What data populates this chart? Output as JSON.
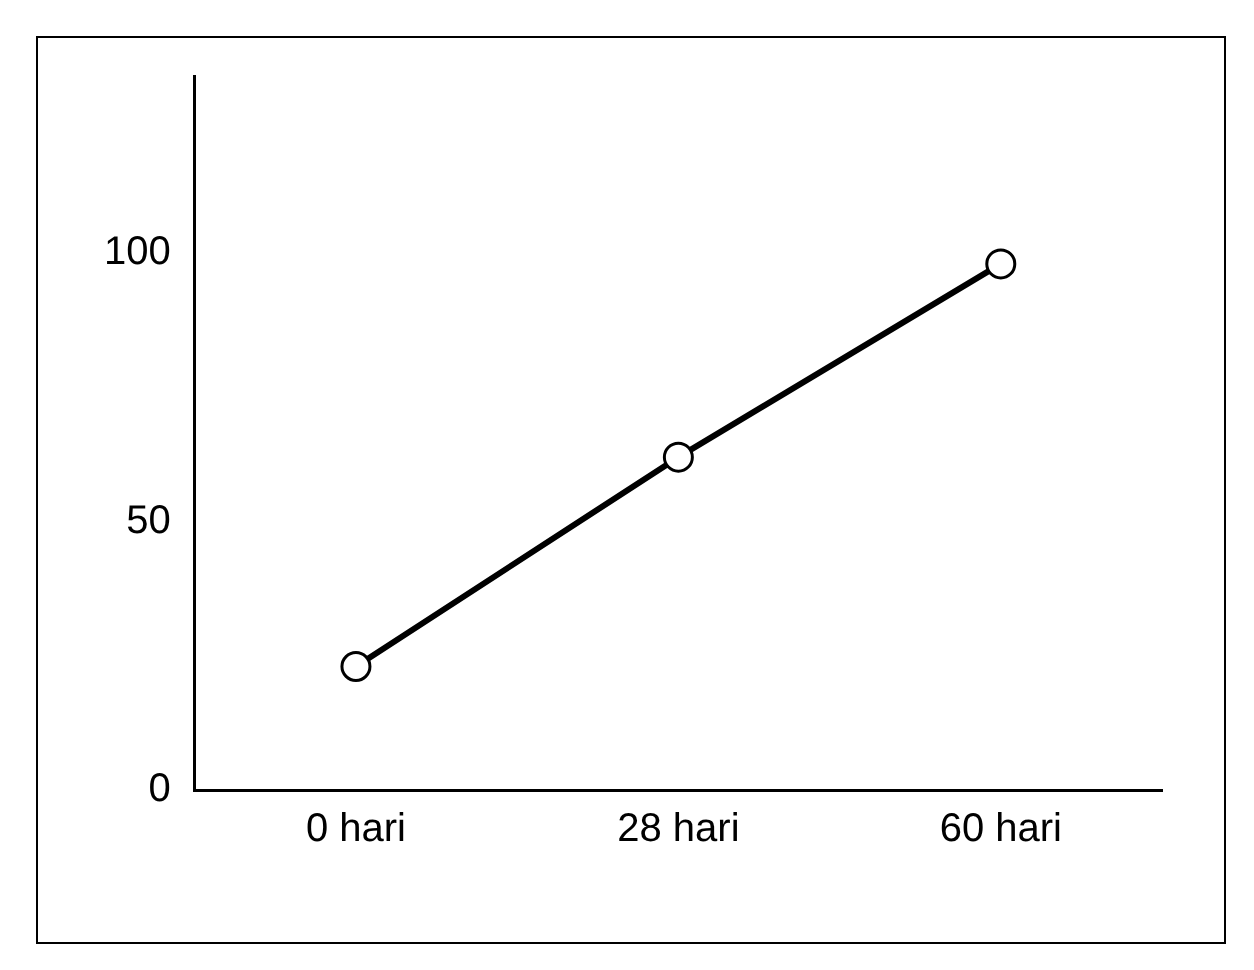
{
  "chart_data": {
    "type": "line",
    "categories": [
      "0 hari",
      "28 hari",
      "60 hari"
    ],
    "series": [
      {
        "color": "#000000",
        "values": [
          23,
          62,
          98
        ]
      }
    ],
    "ylim": [
      0,
      133
    ],
    "yticks": [
      0,
      50,
      100
    ],
    "grid": false,
    "legend": false,
    "marker": "circle",
    "line_style": "solid"
  }
}
